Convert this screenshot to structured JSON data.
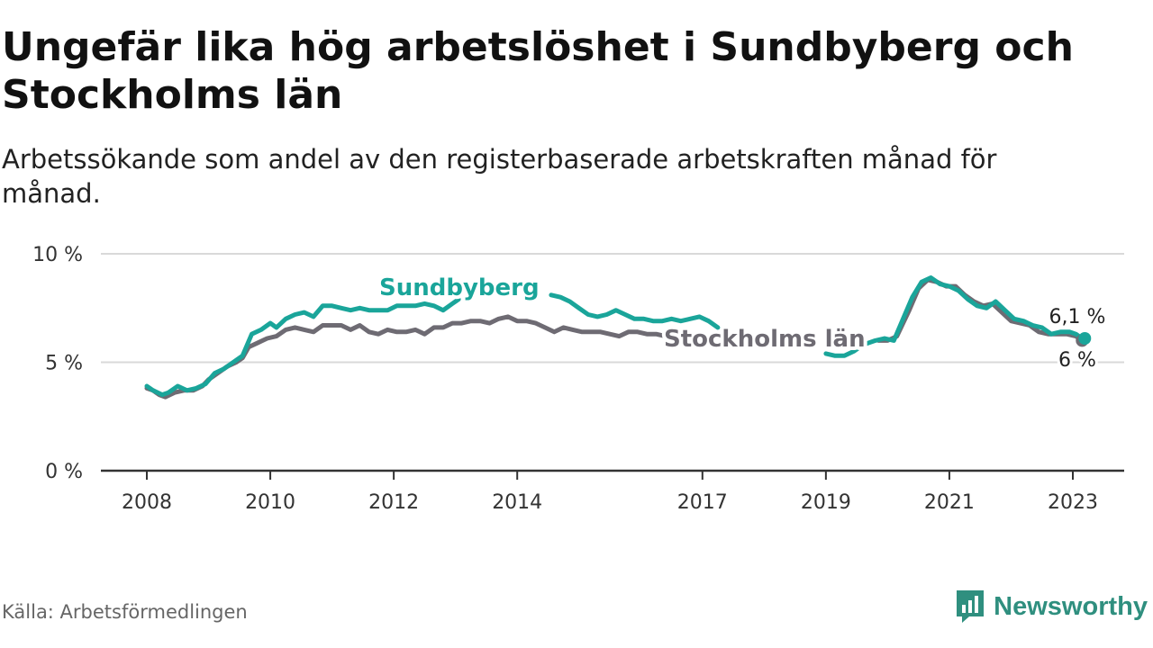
{
  "title": "Ungefär lika hög arbetslöshet i Sundbyberg och Stockholms län",
  "subtitle": "Arbetssökande som andel av den registerbaserade arbetskraften månad för månad.",
  "source": "Källa: Arbetsförmedlingen",
  "brand": "Newsworthy",
  "colors": {
    "sundbyberg": "#1aa59a",
    "stockholm": "#6e6b73",
    "grid": "#d9d9d9",
    "axis": "#333333",
    "brand": "#2f8f7f"
  },
  "chart_data": {
    "type": "line",
    "title": "Ungefär lika hög arbetslöshet i Sundbyberg och Stockholms län",
    "subtitle": "Arbetssökande som andel av den registerbaserade arbetskraften månad för månad.",
    "xlabel": "",
    "ylabel": "",
    "xlim": [
      2008,
      2024.0
    ],
    "ylim": [
      0,
      10
    ],
    "yticks": [
      {
        "value": 0,
        "label": "0 %"
      },
      {
        "value": 5,
        "label": "5 %"
      },
      {
        "value": 10,
        "label": "10 %"
      }
    ],
    "xticks": [
      {
        "value": 2008,
        "label": "2008"
      },
      {
        "value": 2010,
        "label": "2010"
      },
      {
        "value": 2012,
        "label": "2012"
      },
      {
        "value": 2014,
        "label": "2014"
      },
      {
        "value": 2017,
        "label": "2017"
      },
      {
        "value": 2019,
        "label": "2019"
      },
      {
        "value": 2021,
        "label": "2021"
      },
      {
        "value": 2023,
        "label": "2023"
      }
    ],
    "grid": true,
    "series": [
      {
        "name": "Stockholms län",
        "label": "Stockholms län",
        "end_label": "6 %",
        "end_value": 6.0,
        "points": [
          [
            2008.0,
            3.8
          ],
          [
            2008.1,
            3.7
          ],
          [
            2008.2,
            3.5
          ],
          [
            2008.3,
            3.4
          ],
          [
            2008.45,
            3.6
          ],
          [
            2008.6,
            3.7
          ],
          [
            2008.75,
            3.7
          ],
          [
            2008.9,
            3.9
          ],
          [
            2009.0,
            4.2
          ],
          [
            2009.15,
            4.5
          ],
          [
            2009.3,
            4.8
          ],
          [
            2009.45,
            5.0
          ],
          [
            2009.55,
            5.2
          ],
          [
            2009.65,
            5.7
          ],
          [
            2009.8,
            5.9
          ],
          [
            2009.95,
            6.1
          ],
          [
            2010.1,
            6.2
          ],
          [
            2010.25,
            6.5
          ],
          [
            2010.4,
            6.6
          ],
          [
            2010.55,
            6.5
          ],
          [
            2010.7,
            6.4
          ],
          [
            2010.85,
            6.7
          ],
          [
            2011.0,
            6.7
          ],
          [
            2011.15,
            6.7
          ],
          [
            2011.3,
            6.5
          ],
          [
            2011.45,
            6.7
          ],
          [
            2011.6,
            6.4
          ],
          [
            2011.75,
            6.3
          ],
          [
            2011.9,
            6.5
          ],
          [
            2012.05,
            6.4
          ],
          [
            2012.2,
            6.4
          ],
          [
            2012.35,
            6.5
          ],
          [
            2012.5,
            6.3
          ],
          [
            2012.65,
            6.6
          ],
          [
            2012.8,
            6.6
          ],
          [
            2012.95,
            6.8
          ],
          [
            2013.1,
            6.8
          ],
          [
            2013.25,
            6.9
          ],
          [
            2013.4,
            6.9
          ],
          [
            2013.55,
            6.8
          ],
          [
            2013.7,
            7.0
          ],
          [
            2013.85,
            7.1
          ],
          [
            2014.0,
            6.9
          ],
          [
            2014.15,
            6.9
          ],
          [
            2014.3,
            6.8
          ],
          [
            2014.45,
            6.6
          ],
          [
            2014.6,
            6.4
          ],
          [
            2014.75,
            6.6
          ],
          [
            2014.9,
            6.5
          ],
          [
            2015.05,
            6.4
          ],
          [
            2015.2,
            6.4
          ],
          [
            2015.35,
            6.4
          ],
          [
            2015.5,
            6.3
          ],
          [
            2015.65,
            6.2
          ],
          [
            2015.8,
            6.4
          ],
          [
            2015.95,
            6.4
          ],
          [
            2016.1,
            6.3
          ],
          [
            2016.25,
            6.3
          ],
          [
            2016.4,
            6.2
          ],
          [
            2016.55,
            6.0
          ],
          [
            2019.85,
            6.0
          ],
          [
            2020.0,
            6.0
          ],
          [
            2020.15,
            6.2
          ],
          [
            2020.35,
            7.4
          ],
          [
            2020.5,
            8.4
          ],
          [
            2020.65,
            8.8
          ],
          [
            2020.8,
            8.7
          ],
          [
            2020.95,
            8.5
          ],
          [
            2021.1,
            8.5
          ],
          [
            2021.25,
            8.1
          ],
          [
            2021.4,
            7.8
          ],
          [
            2021.55,
            7.6
          ],
          [
            2021.7,
            7.7
          ],
          [
            2021.85,
            7.3
          ],
          [
            2022.0,
            6.9
          ],
          [
            2022.15,
            6.8
          ],
          [
            2022.3,
            6.7
          ],
          [
            2022.45,
            6.4
          ],
          [
            2022.6,
            6.3
          ],
          [
            2022.75,
            6.3
          ],
          [
            2022.9,
            6.3
          ],
          [
            2023.05,
            6.2
          ],
          [
            2023.15,
            6.0
          ]
        ]
      },
      {
        "name": "Sundbyberg",
        "label": "Sundbyberg",
        "end_label": "6,1 %",
        "end_value": 6.1,
        "points": [
          [
            2008.0,
            3.9
          ],
          [
            2008.1,
            3.7
          ],
          [
            2008.25,
            3.5
          ],
          [
            2008.35,
            3.6
          ],
          [
            2008.5,
            3.9
          ],
          [
            2008.65,
            3.7
          ],
          [
            2008.8,
            3.8
          ],
          [
            2008.95,
            4.0
          ],
          [
            2009.1,
            4.5
          ],
          [
            2009.25,
            4.7
          ],
          [
            2009.4,
            5.0
          ],
          [
            2009.55,
            5.3
          ],
          [
            2009.7,
            6.3
          ],
          [
            2009.85,
            6.5
          ],
          [
            2010.0,
            6.8
          ],
          [
            2010.1,
            6.6
          ],
          [
            2010.25,
            7.0
          ],
          [
            2010.4,
            7.2
          ],
          [
            2010.55,
            7.3
          ],
          [
            2010.7,
            7.1
          ],
          [
            2010.85,
            7.6
          ],
          [
            2011.0,
            7.6
          ],
          [
            2011.15,
            7.5
          ],
          [
            2011.3,
            7.4
          ],
          [
            2011.45,
            7.5
          ],
          [
            2011.6,
            7.4
          ],
          [
            2011.75,
            7.4
          ],
          [
            2011.9,
            7.4
          ],
          [
            2012.05,
            7.6
          ],
          [
            2012.2,
            7.6
          ],
          [
            2012.35,
            7.6
          ],
          [
            2012.5,
            7.7
          ],
          [
            2012.65,
            7.6
          ],
          [
            2012.8,
            7.4
          ],
          [
            2012.95,
            7.7
          ],
          [
            2013.05,
            7.9
          ],
          [
            2014.55,
            8.1
          ],
          [
            2014.7,
            8.0
          ],
          [
            2014.85,
            7.8
          ],
          [
            2015.0,
            7.5
          ],
          [
            2015.15,
            7.2
          ],
          [
            2015.3,
            7.1
          ],
          [
            2015.45,
            7.2
          ],
          [
            2015.6,
            7.4
          ],
          [
            2015.75,
            7.2
          ],
          [
            2015.9,
            7.0
          ],
          [
            2016.05,
            7.0
          ],
          [
            2016.2,
            6.9
          ],
          [
            2016.35,
            6.9
          ],
          [
            2016.5,
            7.0
          ],
          [
            2016.65,
            6.9
          ],
          [
            2016.8,
            7.0
          ],
          [
            2016.95,
            7.1
          ],
          [
            2017.1,
            6.9
          ],
          [
            2017.25,
            6.6
          ],
          [
            2019.0,
            5.4
          ],
          [
            2019.15,
            5.3
          ],
          [
            2019.3,
            5.3
          ],
          [
            2019.45,
            5.5
          ],
          [
            2019.6,
            5.8
          ],
          [
            2019.8,
            6.0
          ],
          [
            2019.95,
            6.1
          ],
          [
            2020.1,
            6.0
          ],
          [
            2020.25,
            7.0
          ],
          [
            2020.4,
            8.0
          ],
          [
            2020.55,
            8.7
          ],
          [
            2020.7,
            8.9
          ],
          [
            2020.85,
            8.6
          ],
          [
            2021.0,
            8.5
          ],
          [
            2021.15,
            8.3
          ],
          [
            2021.3,
            7.9
          ],
          [
            2021.45,
            7.6
          ],
          [
            2021.6,
            7.5
          ],
          [
            2021.75,
            7.8
          ],
          [
            2021.9,
            7.4
          ],
          [
            2022.05,
            7.0
          ],
          [
            2022.2,
            6.9
          ],
          [
            2022.35,
            6.7
          ],
          [
            2022.5,
            6.6
          ],
          [
            2022.65,
            6.3
          ],
          [
            2022.8,
            6.4
          ],
          [
            2022.95,
            6.4
          ],
          [
            2023.05,
            6.3
          ],
          [
            2023.15,
            6.1
          ]
        ]
      }
    ]
  }
}
